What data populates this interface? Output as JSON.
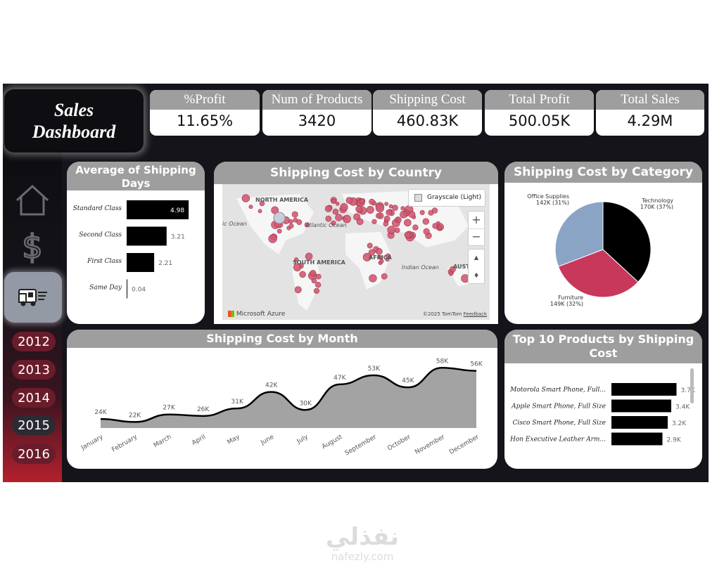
{
  "title": {
    "line1": "Sales",
    "line2": "Dashboard"
  },
  "kpis": [
    {
      "label": "%Profit",
      "value": "11.65%"
    },
    {
      "label": "Num of Products",
      "value": "3420"
    },
    {
      "label": "Shipping Cost",
      "value": "460.83K"
    },
    {
      "label": "Total Profit",
      "value": "500.05K"
    },
    {
      "label": "Total Sales",
      "value": "4.29M"
    }
  ],
  "nav": {
    "icons": [
      "home-icon",
      "dollar-icon",
      "delivery-truck-icon"
    ]
  },
  "years": [
    "2012",
    "2013",
    "2014",
    "2015",
    "2016"
  ],
  "avg_days": {
    "title": "Average of Shipping Days",
    "chart_data": {
      "type": "bar",
      "categories": [
        "Standard Class",
        "Second Class",
        "First Class",
        "Same Day"
      ],
      "values": [
        4.98,
        3.21,
        2.21,
        0.04
      ],
      "labels": [
        "4.98",
        "3.21",
        "2.21",
        "0.04"
      ]
    }
  },
  "map": {
    "title": "Shipping Cost by Country",
    "style_label": "Grayscale (Light)",
    "regions": [
      "NORTH AMERICA",
      "SOUTH AMERICA",
      "AFRICA",
      "AUSTRAL"
    ],
    "oceans": [
      "ic Ocean",
      "Atlantic Ocean",
      "Indian Ocean"
    ],
    "brand": "Microsoft Azure",
    "credit": "©2025 TomTom",
    "feedback": "Feedback",
    "zoom_in": "+",
    "zoom_out": "−"
  },
  "category": {
    "title": "Shipping Cost by Category",
    "chart_data": {
      "type": "pie",
      "slices": [
        {
          "name": "Technology",
          "value": 170,
          "label": "170K (37%)",
          "color": "#000000"
        },
        {
          "name": "Furniture",
          "value": 149,
          "label": "149K (32%)",
          "color": "#c8385a"
        },
        {
          "name": "Office Supplies",
          "value": 142,
          "label": "142K (31%)",
          "color": "#8aa4c6"
        }
      ]
    }
  },
  "monthly": {
    "title": "Shipping Cost by Month",
    "chart_data": {
      "type": "area",
      "categories": [
        "January",
        "February",
        "March",
        "April",
        "May",
        "June",
        "July",
        "August",
        "September",
        "October",
        "November",
        "December"
      ],
      "values": [
        24,
        22,
        27,
        26,
        31,
        42,
        30,
        47,
        53,
        45,
        58,
        56
      ],
      "labels": [
        "24K",
        "22K",
        "27K",
        "26K",
        "31K",
        "42K",
        "30K",
        "47K",
        "53K",
        "45K",
        "58K",
        "56K"
      ]
    }
  },
  "top10": {
    "title": "Top 10 Products by Shipping Cost",
    "chart_data": {
      "type": "bar",
      "categories": [
        "Motorola Smart Phone, Full...",
        "Apple Smart Phone, Full Size",
        "Cisco Smart Phone, Full Size",
        "Hon Executive Leather Arm..."
      ],
      "values": [
        3.7,
        3.4,
        3.2,
        2.9
      ],
      "labels": [
        "3.7K",
        "3.4K",
        "3.2K",
        "2.9K"
      ]
    }
  },
  "watermark": {
    "arabic": "نفذلي",
    "latin": "nafezly.com"
  }
}
